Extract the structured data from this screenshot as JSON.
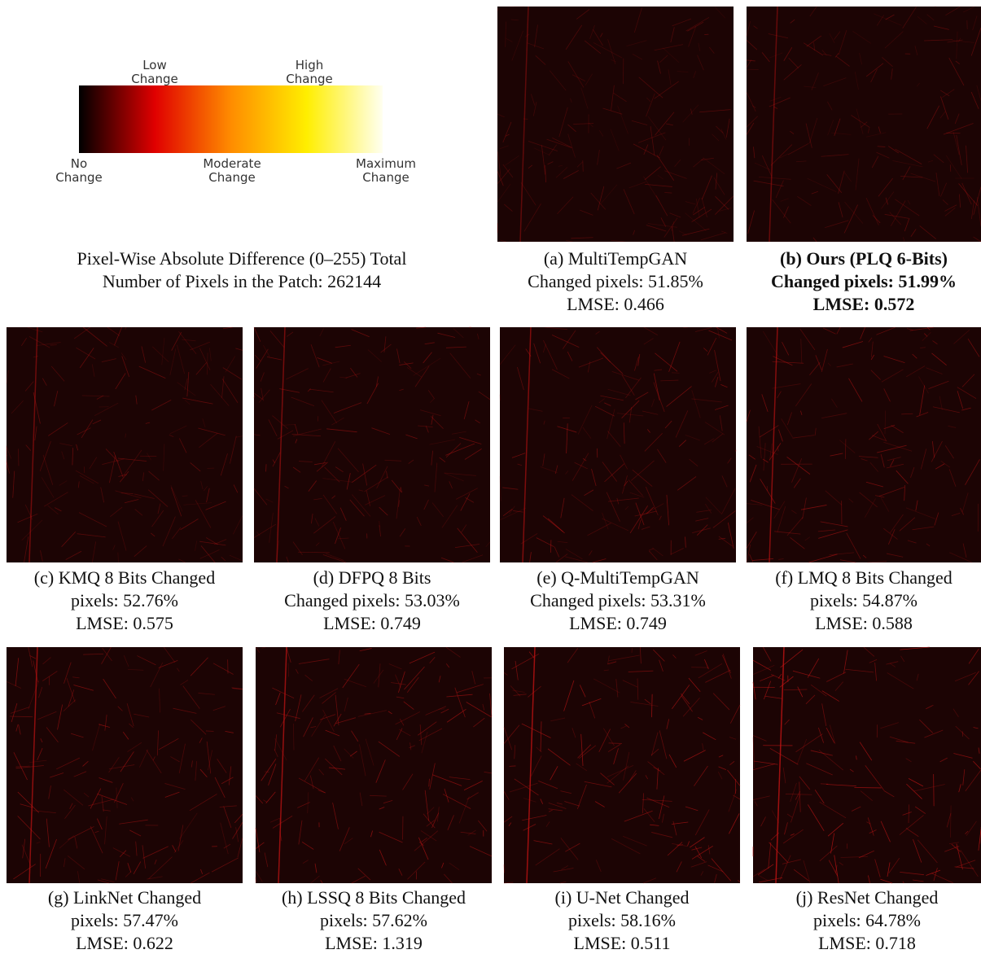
{
  "legend": {
    "labels": [
      [
        "Low",
        "Change"
      ],
      [
        "High",
        "Change"
      ],
      [
        "No",
        "Change"
      ],
      [
        "Moderate",
        "Change"
      ],
      [
        "Maximum",
        "Change"
      ]
    ],
    "caption": [
      "Pixel-Wise Absolute Difference (0–255) Total",
      "Number of Pixels in the Patch: 262144"
    ]
  },
  "panels": [
    {
      "caption": [
        "(a) MultiTempGAN",
        "Changed pixels: 51.85%",
        "LMSE: 0.466"
      ]
    },
    {
      "caption": [
        "(b) Ours (PLQ 6-Bits)",
        "Changed pixels: 51.99%",
        "LMSE: 0.572"
      ]
    },
    {
      "caption": [
        "(c) KMQ 8 Bits Changed",
        "pixels: 52.76%",
        "LMSE: 0.575"
      ]
    },
    {
      "caption": [
        "(d) DFPQ 8 Bits",
        "Changed pixels: 53.03%",
        "LMSE: 0.749"
      ]
    },
    {
      "caption": [
        "(e) Q-MultiTempGAN",
        "Changed pixels: 53.31%",
        "LMSE: 0.749"
      ]
    },
    {
      "caption": [
        "(f) LMQ 8 Bits Changed",
        "pixels: 54.87%",
        "LMSE: 0.588"
      ]
    },
    {
      "caption": [
        "(g) LinkNet Changed",
        "pixels: 57.47%",
        "LMSE: 0.622"
      ]
    },
    {
      "caption": [
        "(h) LSSQ 8 Bits Changed",
        "pixels: 57.62%",
        "LMSE: 1.319"
      ]
    },
    {
      "caption": [
        "(i) U-Net Changed",
        "pixels: 58.16%",
        "LMSE: 0.511"
      ]
    },
    {
      "caption": [
        "(j) ResNet Changed",
        "pixels: 64.78%",
        "LMSE: 0.718"
      ]
    }
  ]
}
